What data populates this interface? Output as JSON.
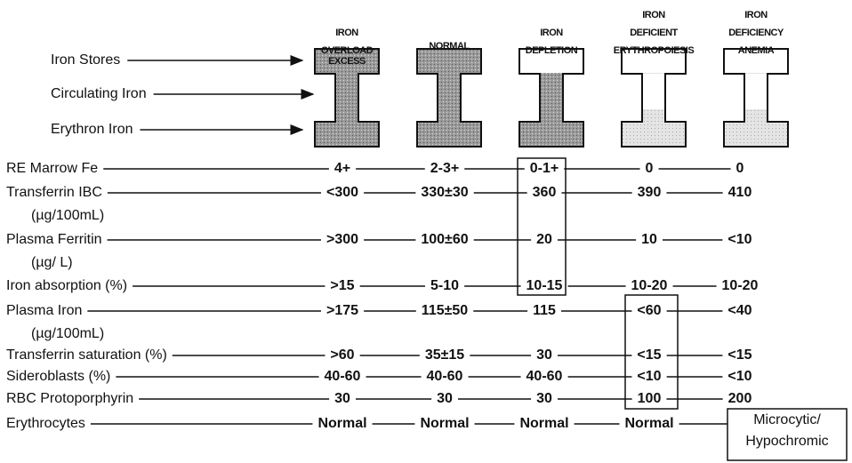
{
  "columns": [
    [
      "IRON",
      "OVERLOAD"
    ],
    [
      "NORMAL"
    ],
    [
      "IRON",
      "DEPLETION"
    ],
    [
      "IRON",
      "DEFICIENT",
      "ERYTHROPOIESIS"
    ],
    [
      "IRON",
      "DEFICIENCY",
      "ANEMIA"
    ]
  ],
  "compartments": [
    "Iron Stores",
    "Circulating Iron",
    "Erythron Iron"
  ],
  "excess_label": "EXCESS",
  "rows": [
    {
      "label": "RE Marrow Fe",
      "values": [
        "4+",
        "2-3+",
        "0-1+",
        "0",
        "0"
      ]
    },
    {
      "label": "Transferrin IBC",
      "unit": "(µg/100mL)",
      "values": [
        "<300",
        "330±30",
        "360",
        "390",
        "410"
      ]
    },
    {
      "label": "Plasma Ferritin",
      "unit": "(µg/ L)",
      "values": [
        ">300",
        "100±60",
        "20",
        "10",
        "<10"
      ]
    },
    {
      "label": "Iron absorption (%)",
      "values": [
        ">15",
        "5-10",
        "10-15",
        "10-20",
        "10-20"
      ]
    },
    {
      "label": "Plasma Iron",
      "unit": "(µg/100mL)",
      "values": [
        ">175",
        "115±50",
        "115",
        "<60",
        "<40"
      ]
    },
    {
      "label": "Transferrin saturation (%)",
      "values": [
        ">60",
        "35±15",
        "30",
        "<15",
        "<15"
      ]
    },
    {
      "label": "Sideroblasts (%)",
      "values": [
        "40-60",
        "40-60",
        "40-60",
        "<10",
        "<10"
      ]
    },
    {
      "label": "RBC Protoporphyrin",
      "values": [
        "30",
        "30",
        "30",
        "100",
        "200"
      ]
    },
    {
      "label": "Erythrocytes",
      "values": [
        "Normal",
        "Normal",
        "Normal",
        "Normal",
        [
          "Microcytic/",
          "Hypochromic"
        ]
      ]
    }
  ]
}
